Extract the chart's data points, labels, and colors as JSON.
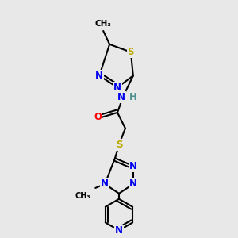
{
  "bg_color": "#e8e8e8",
  "bond_color": "#000000",
  "bond_width": 1.5,
  "atom_colors": {
    "N": "#0000ee",
    "S": "#bbaa00",
    "O": "#ff0000",
    "H": "#4a9090",
    "C": "#000000"
  },
  "font_size_atom": 8.5
}
